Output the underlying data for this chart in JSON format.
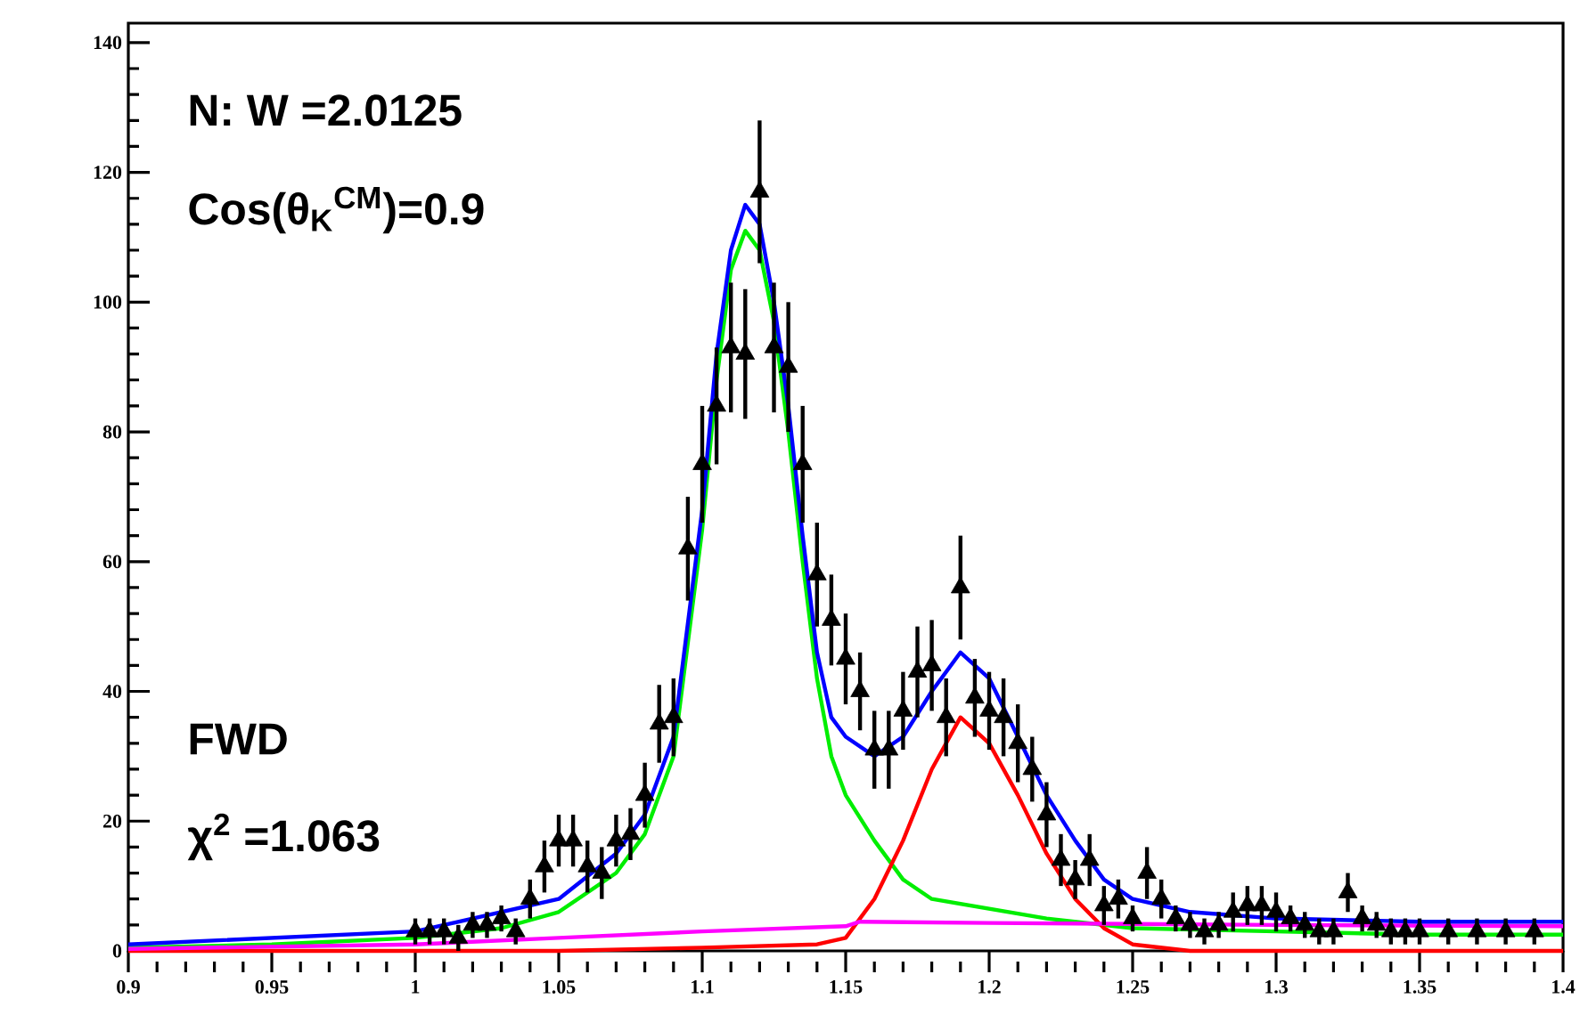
{
  "chart_data": {
    "type": "scatter",
    "xlim": [
      0.9,
      1.4
    ],
    "ylim": [
      0,
      143
    ],
    "xticks": [
      0.9,
      0.95,
      1,
      1.05,
      1.1,
      1.15,
      1.2,
      1.25,
      1.3,
      1.35,
      1.4
    ],
    "yticks": [
      0,
      20,
      40,
      60,
      80,
      100,
      120,
      140
    ],
    "annotations": [
      "N:  W =2.0125",
      "Cos(θ$_{K}$$^{CM}$)=0.9",
      "FWD",
      "χ$^{2}$ =1.063"
    ],
    "series": [
      {
        "color": "#000000",
        "marker": "triangle",
        "x": [
          1.0,
          1.005,
          1.01,
          1.015,
          1.02,
          1.025,
          1.03,
          1.035,
          1.04,
          1.045,
          1.05,
          1.055,
          1.06,
          1.065,
          1.07,
          1.075,
          1.08,
          1.085,
          1.09,
          1.095,
          1.1,
          1.105,
          1.11,
          1.115,
          1.12,
          1.125,
          1.13,
          1.135,
          1.14,
          1.145,
          1.15,
          1.155,
          1.16,
          1.165,
          1.17,
          1.175,
          1.18,
          1.185,
          1.19,
          1.195,
          1.2,
          1.205,
          1.21,
          1.215,
          1.22,
          1.225,
          1.23,
          1.235,
          1.24,
          1.245,
          1.25,
          1.255,
          1.26,
          1.265,
          1.27,
          1.275,
          1.28,
          1.285,
          1.29,
          1.295,
          1.3,
          1.305,
          1.31,
          1.315,
          1.32,
          1.325,
          1.33,
          1.335,
          1.34,
          1.345,
          1.35,
          1.36,
          1.37,
          1.38,
          1.39
        ],
        "values": [
          3,
          3,
          3,
          2,
          4,
          4,
          5,
          3,
          8,
          13,
          17,
          17,
          13,
          12,
          17,
          18,
          24,
          35,
          36,
          62,
          75,
          84,
          93,
          92,
          117,
          93,
          90,
          75,
          58,
          51,
          45,
          40,
          31,
          31,
          37,
          43,
          44,
          36,
          56,
          39,
          37,
          36,
          32,
          28,
          21,
          14,
          11,
          14,
          7,
          8,
          5,
          12,
          8,
          5,
          4,
          3,
          4,
          6,
          7,
          7,
          6,
          5,
          4,
          3,
          3,
          9,
          5,
          4,
          3,
          3,
          3,
          3,
          3,
          3,
          3
        ],
        "errors": [
          2,
          2,
          2,
          2,
          2,
          2,
          2,
          2,
          3,
          4,
          4,
          4,
          4,
          4,
          4,
          4,
          5,
          6,
          6,
          8,
          9,
          9,
          10,
          10,
          11,
          10,
          10,
          9,
          8,
          7,
          7,
          6,
          6,
          6,
          6,
          7,
          7,
          6,
          8,
          6,
          6,
          6,
          6,
          5,
          5,
          4,
          3,
          4,
          3,
          3,
          2,
          4,
          3,
          2,
          2,
          2,
          2,
          3,
          3,
          3,
          3,
          2,
          2,
          2,
          2,
          3,
          2,
          2,
          2,
          2,
          2,
          2,
          2,
          2,
          2
        ]
      },
      {
        "type": "line",
        "color": "#00ee00",
        "x": [
          0.9,
          0.95,
          1.0,
          1.03,
          1.05,
          1.07,
          1.08,
          1.09,
          1.1,
          1.105,
          1.11,
          1.115,
          1.12,
          1.125,
          1.13,
          1.135,
          1.14,
          1.145,
          1.15,
          1.16,
          1.17,
          1.18,
          1.2,
          1.22,
          1.25,
          1.3,
          1.35,
          1.4
        ],
        "values": [
          0.5,
          1,
          2,
          3.5,
          6,
          12,
          18,
          30,
          65,
          88,
          105,
          111,
          108,
          97,
          80,
          60,
          42,
          30,
          24,
          17,
          11,
          8,
          6.5,
          5,
          3.5,
          3,
          2.5,
          2.5
        ]
      },
      {
        "type": "line",
        "color": "#ff0000",
        "x": [
          0.9,
          1.05,
          1.1,
          1.14,
          1.15,
          1.16,
          1.17,
          1.18,
          1.19,
          1.2,
          1.21,
          1.22,
          1.23,
          1.24,
          1.25,
          1.27,
          1.4
        ],
        "values": [
          0,
          0,
          0.5,
          1,
          2,
          8,
          17,
          28,
          36,
          32,
          24,
          15,
          8,
          3.5,
          1,
          0,
          0
        ]
      },
      {
        "type": "line",
        "color": "#ff00ff",
        "x": [
          0.9,
          1.0,
          1.05,
          1.1,
          1.15,
          1.155,
          1.2,
          1.3,
          1.4
        ],
        "values": [
          0.3,
          1,
          2,
          3,
          3.8,
          4.5,
          4.3,
          4,
          3.8
        ]
      },
      {
        "type": "line",
        "color": "#0000ff",
        "x": [
          0.9,
          1.0,
          1.05,
          1.07,
          1.08,
          1.09,
          1.1,
          1.105,
          1.11,
          1.115,
          1.12,
          1.125,
          1.13,
          1.135,
          1.14,
          1.145,
          1.15,
          1.16,
          1.17,
          1.18,
          1.19,
          1.2,
          1.21,
          1.22,
          1.23,
          1.24,
          1.25,
          1.27,
          1.3,
          1.35,
          1.4
        ],
        "values": [
          1,
          3,
          8,
          15,
          21,
          33,
          68,
          92,
          108,
          115,
          112,
          100,
          84,
          64,
          46,
          36,
          33,
          30,
          33,
          40,
          46,
          42,
          33,
          24,
          17,
          11,
          8,
          6,
          5,
          4.5,
          4.5
        ]
      }
    ]
  }
}
